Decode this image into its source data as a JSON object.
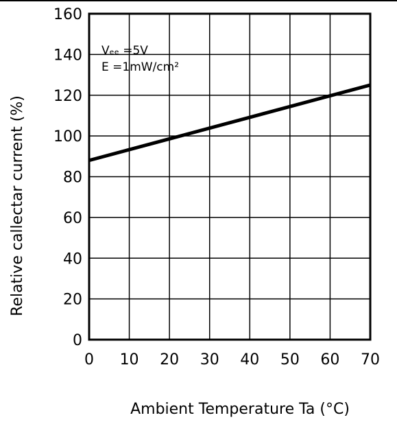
{
  "chart_data": {
    "type": "line",
    "title": "",
    "xlabel": "Ambient Temperature Ta (°C)",
    "ylabel": "Relative callectar current (%)",
    "xlim": [
      0,
      70
    ],
    "ylim": [
      0,
      160
    ],
    "xticks": [
      0,
      10,
      20,
      30,
      40,
      50,
      60,
      70
    ],
    "yticks": [
      0,
      20,
      40,
      60,
      80,
      100,
      120,
      140,
      160
    ],
    "grid": true,
    "annotations": [
      "Vₑₑ =5V",
      "E =1mW/cm²"
    ],
    "series": [
      {
        "x": [
          0,
          70
        ],
        "y": [
          88,
          125
        ]
      }
    ]
  }
}
